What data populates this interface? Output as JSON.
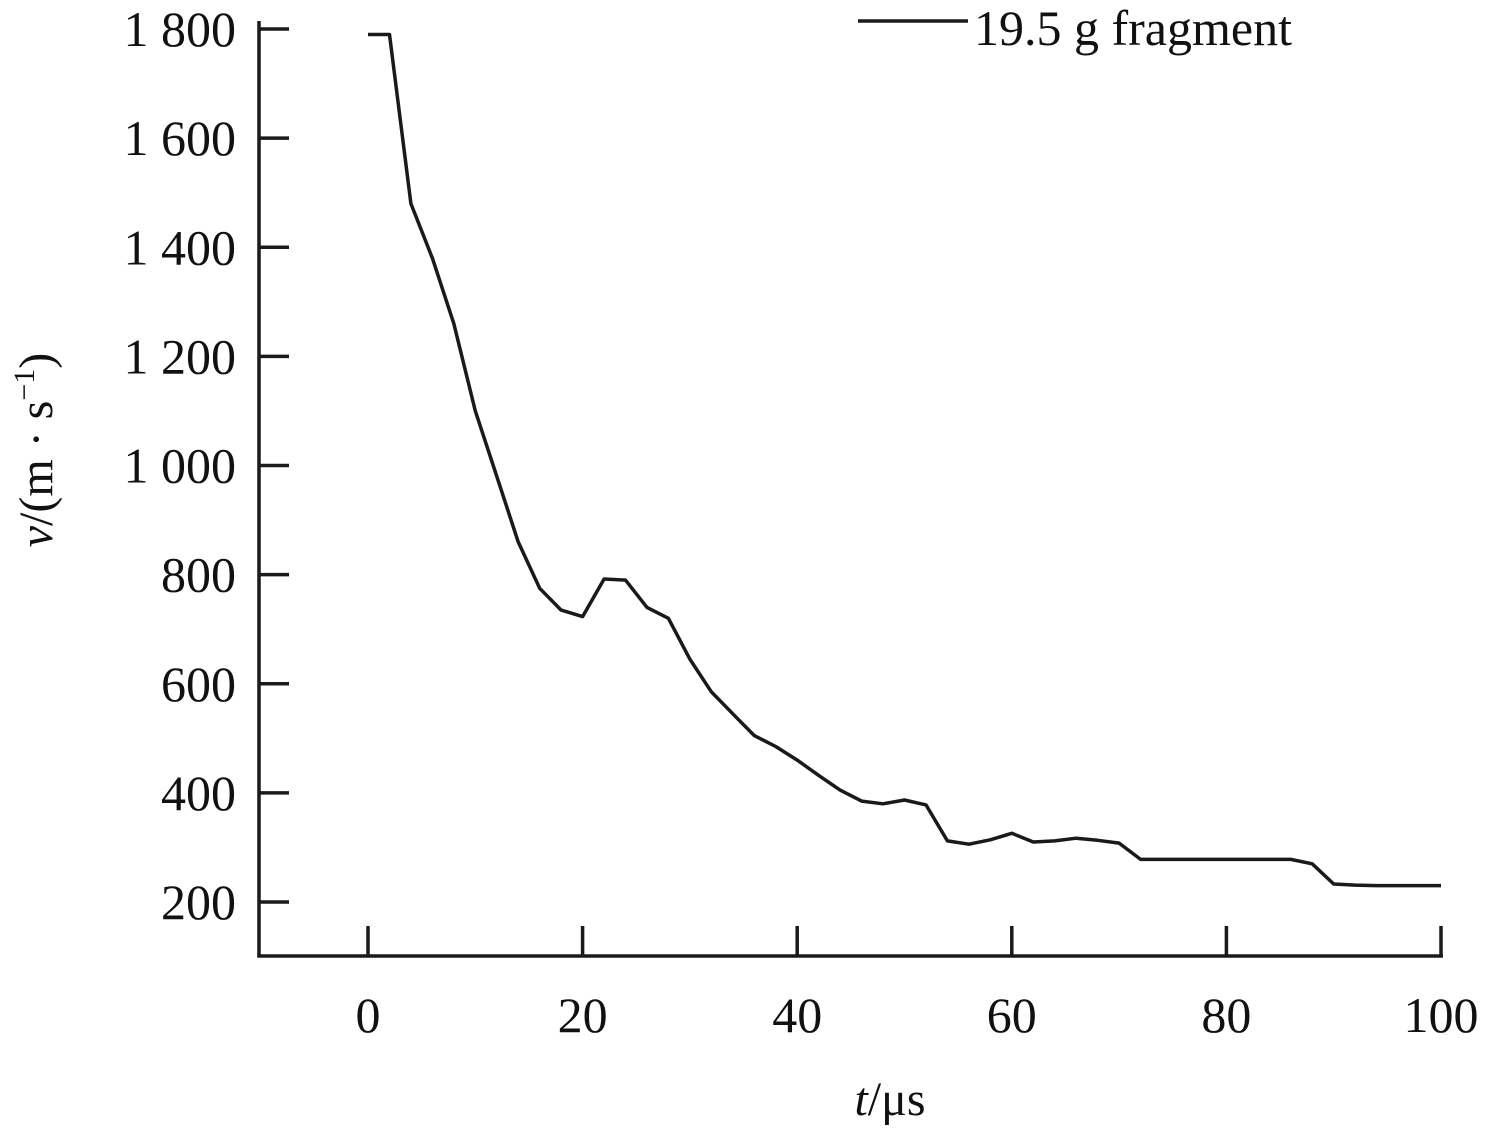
{
  "chart_data": {
    "type": "line",
    "xlabel_var": "t",
    "xlabel_unit": "/μs",
    "ylabel_var": "v",
    "ylabel_unit": "/(m · s",
    "ylabel_exp": "−1",
    "ylabel_close": ")",
    "xlim": [
      -10,
      100
    ],
    "ylim": [
      170,
      1810
    ],
    "x_ticks": [
      0,
      20,
      40,
      60,
      80,
      100
    ],
    "x_tick_labels": [
      "0",
      "20",
      "40",
      "60",
      "80",
      "100"
    ],
    "y_ticks": [
      200,
      400,
      600,
      800,
      1000,
      1200,
      1400,
      1600,
      1800
    ],
    "y_tick_labels": [
      "200",
      "400",
      "600",
      "800",
      "1 000",
      "1 200",
      "1 400",
      "1 600",
      "1 800"
    ],
    "legend_position": "top-right",
    "grid": false,
    "series": [
      {
        "name": "19.5 g fragment",
        "color": "#1a1a1a",
        "x": [
          0,
          2,
          4,
          6,
          8,
          10,
          12,
          14,
          16,
          18,
          20,
          22,
          24,
          26,
          28,
          30,
          32,
          34,
          36,
          38,
          40,
          42,
          44,
          46,
          48,
          50,
          52,
          54,
          56,
          58,
          60,
          62,
          64,
          66,
          68,
          70,
          72,
          74,
          76,
          78,
          80,
          82,
          84,
          86,
          88,
          90,
          92,
          94,
          96,
          98,
          100
        ],
        "y": [
          1790,
          1790,
          1480,
          1380,
          1260,
          1100,
          980,
          860,
          775,
          735,
          723,
          792,
          790,
          740,
          720,
          645,
          585,
          545,
          505,
          485,
          460,
          432,
          405,
          385,
          380,
          387,
          378,
          312,
          306,
          314,
          326,
          310,
          312,
          317,
          313,
          308,
          278,
          278,
          278,
          278,
          278,
          278,
          278,
          278,
          270,
          233,
          231,
          230,
          230,
          230,
          230
        ]
      }
    ]
  }
}
